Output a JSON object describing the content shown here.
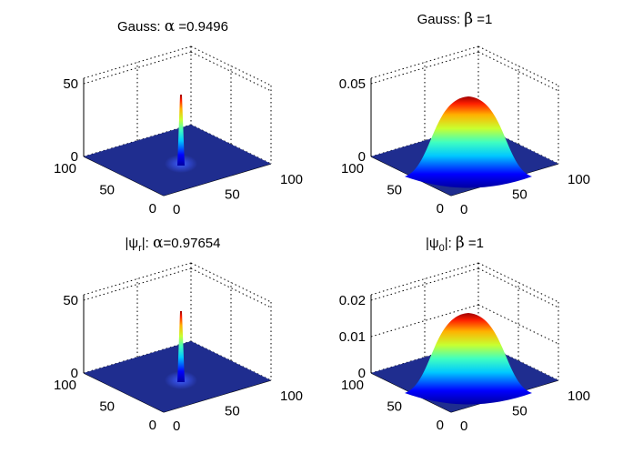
{
  "figure": {
    "panels": [
      {
        "title_pre": "Gauss: ",
        "title_sym": "α",
        "title_post": " =0.9496",
        "z_ticks": [
          "0",
          "50"
        ],
        "x_ticks": [
          "0",
          "50",
          "100"
        ],
        "y_ticks": [
          "0",
          "50",
          "100"
        ],
        "surface": "narrow-spike"
      },
      {
        "title_pre": "Gauss:   ",
        "title_sym": "β",
        "title_post": " =1",
        "z_ticks": [
          "0",
          "0.05"
        ],
        "x_ticks": [
          "0",
          "50",
          "100"
        ],
        "y_ticks": [
          "0",
          "50",
          "100"
        ],
        "surface": "gaussian-bump"
      },
      {
        "title_pre": "|ψ",
        "title_sub": "r",
        "title_mid": "|: ",
        "title_sym": "α",
        "title_post": "=0.97654",
        "z_ticks": [
          "0",
          "50"
        ],
        "x_ticks": [
          "0",
          "50",
          "100"
        ],
        "y_ticks": [
          "0",
          "50",
          "100"
        ],
        "surface": "narrow-spike"
      },
      {
        "title_pre": "|ψ",
        "title_sub": "0",
        "title_mid": "|:  ",
        "title_sym": "β",
        "title_post": " =1",
        "z_ticks": [
          "0",
          "0.01",
          "0.02"
        ],
        "x_ticks": [
          "0",
          "50",
          "100"
        ],
        "y_ticks": [
          "0",
          "50",
          "100"
        ],
        "surface": "gaussian-bump"
      }
    ],
    "colormap": "jet",
    "base_color": "#1f2d8f"
  },
  "chart_data": [
    {
      "type": "surface",
      "title": "Gauss: α =0.9496",
      "x_range": [
        0,
        100
      ],
      "y_range": [
        0,
        100
      ],
      "z_ticks": [
        0,
        50
      ],
      "peak": {
        "x": 50,
        "y": 50,
        "z": 60
      },
      "grid": true
    },
    {
      "type": "surface",
      "title": "Gauss: β =1",
      "x_range": [
        0,
        100
      ],
      "y_range": [
        0,
        100
      ],
      "z_ticks": [
        0,
        0.05
      ],
      "peak": {
        "x": 50,
        "y": 50,
        "z": 0.048
      },
      "grid": true
    },
    {
      "type": "surface",
      "title": "|ψr|: α=0.97654",
      "x_range": [
        0,
        100
      ],
      "y_range": [
        0,
        100
      ],
      "z_ticks": [
        0,
        50
      ],
      "peak": {
        "x": 50,
        "y": 50,
        "z": 62
      },
      "grid": true
    },
    {
      "type": "surface",
      "title": "|ψ0|: β =1",
      "x_range": [
        0,
        100
      ],
      "y_range": [
        0,
        100
      ],
      "z_ticks": [
        0,
        0.01,
        0.02
      ],
      "peak": {
        "x": 50,
        "y": 50,
        "z": 0.026
      },
      "grid": true
    }
  ]
}
